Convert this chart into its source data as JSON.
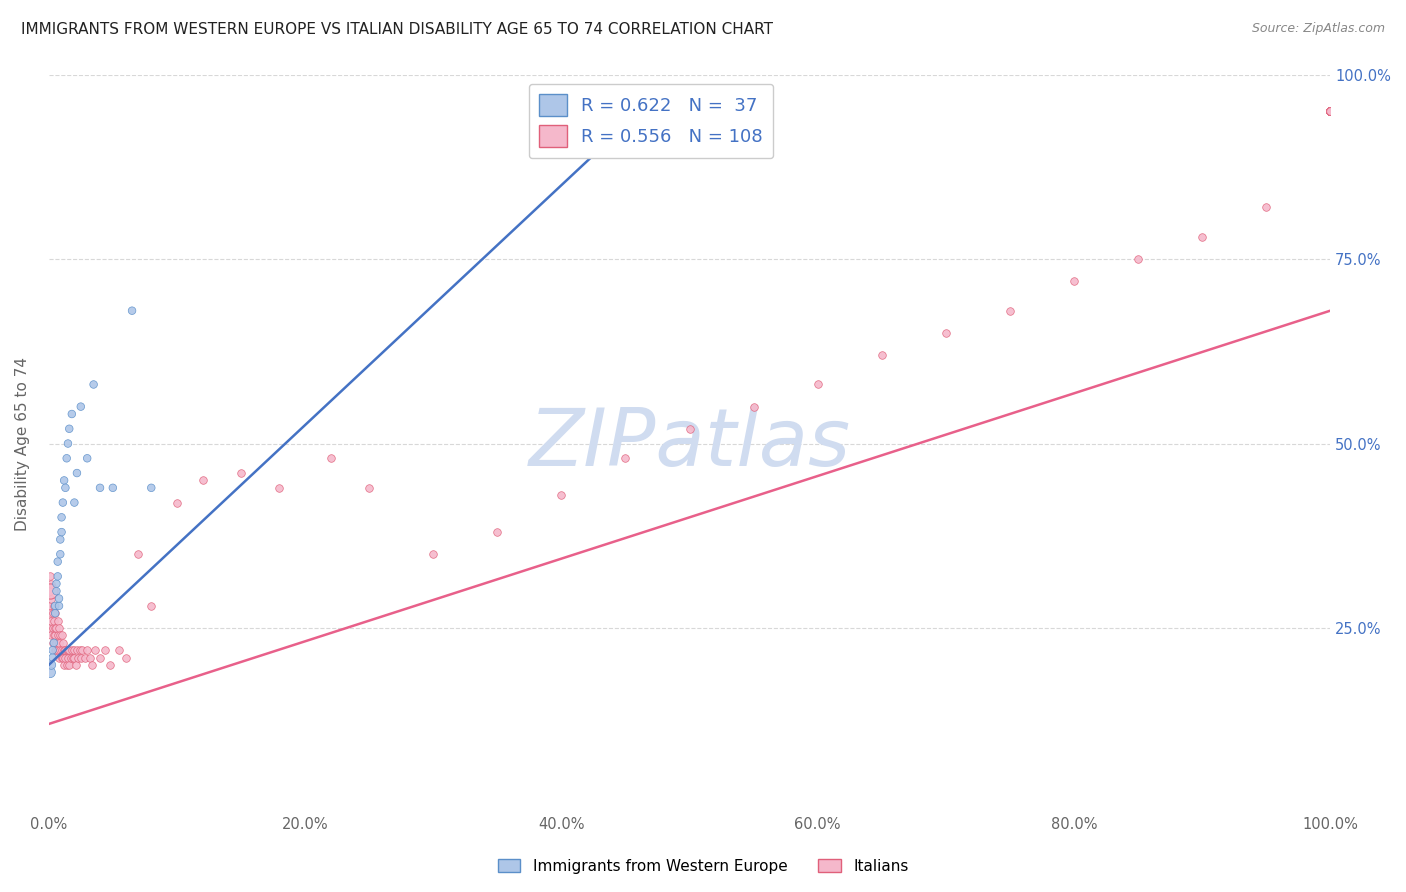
{
  "title": "IMMIGRANTS FROM WESTERN EUROPE VS ITALIAN DISABILITY AGE 65 TO 74 CORRELATION CHART",
  "source": "Source: ZipAtlas.com",
  "ylabel": "Disability Age 65 to 74",
  "blue_R": 0.622,
  "blue_N": 37,
  "pink_R": 0.556,
  "pink_N": 108,
  "blue_color": "#aec6e8",
  "pink_color": "#f5b8cb",
  "blue_edge_color": "#5b8fc9",
  "pink_edge_color": "#e0607a",
  "blue_line_color": "#4472c4",
  "pink_line_color": "#e8608a",
  "legend_text_color": "#4472c4",
  "title_color": "#222222",
  "source_color": "#888888",
  "grid_color": "#d8d8d8",
  "blue_scatter_x": [
    0.001,
    0.002,
    0.003,
    0.003,
    0.004,
    0.005,
    0.005,
    0.006,
    0.006,
    0.007,
    0.007,
    0.008,
    0.008,
    0.009,
    0.009,
    0.01,
    0.01,
    0.011,
    0.012,
    0.013,
    0.014,
    0.015,
    0.016,
    0.018,
    0.02,
    0.022,
    0.025,
    0.03,
    0.035,
    0.04,
    0.05,
    0.065,
    0.08,
    0.38,
    0.42,
    0.46,
    0.5
  ],
  "blue_scatter_y": [
    0.19,
    0.2,
    0.21,
    0.22,
    0.23,
    0.27,
    0.28,
    0.3,
    0.31,
    0.32,
    0.34,
    0.28,
    0.29,
    0.35,
    0.37,
    0.38,
    0.4,
    0.42,
    0.45,
    0.44,
    0.48,
    0.5,
    0.52,
    0.54,
    0.42,
    0.46,
    0.55,
    0.48,
    0.58,
    0.44,
    0.44,
    0.68,
    0.44,
    0.95,
    0.95,
    0.95,
    0.95
  ],
  "blue_sizes": [
    60,
    40,
    30,
    30,
    30,
    30,
    30,
    30,
    30,
    30,
    30,
    30,
    30,
    30,
    30,
    30,
    30,
    30,
    30,
    30,
    30,
    30,
    30,
    30,
    30,
    30,
    30,
    30,
    30,
    30,
    30,
    30,
    30,
    30,
    30,
    30,
    30
  ],
  "pink_scatter_x": [
    0.001,
    0.001,
    0.001,
    0.001,
    0.001,
    0.002,
    0.002,
    0.002,
    0.002,
    0.003,
    0.003,
    0.003,
    0.004,
    0.004,
    0.004,
    0.005,
    0.005,
    0.005,
    0.005,
    0.006,
    0.006,
    0.006,
    0.007,
    0.007,
    0.007,
    0.008,
    0.008,
    0.008,
    0.009,
    0.009,
    0.01,
    0.01,
    0.01,
    0.011,
    0.011,
    0.012,
    0.012,
    0.013,
    0.013,
    0.014,
    0.014,
    0.015,
    0.015,
    0.016,
    0.016,
    0.017,
    0.018,
    0.019,
    0.02,
    0.02,
    0.021,
    0.022,
    0.023,
    0.024,
    0.025,
    0.026,
    0.028,
    0.03,
    0.032,
    0.034,
    0.036,
    0.04,
    0.044,
    0.048,
    0.055,
    0.06,
    0.07,
    0.08,
    0.1,
    0.12,
    0.15,
    0.18,
    0.22,
    0.25,
    0.3,
    0.35,
    0.4,
    0.45,
    0.5,
    0.55,
    0.6,
    0.65,
    0.7,
    0.75,
    0.8,
    0.85,
    0.9,
    0.95,
    1.0,
    1.0,
    1.0,
    1.0,
    1.0,
    1.0,
    1.0,
    1.0,
    1.0,
    1.0,
    1.0,
    1.0,
    1.0,
    1.0,
    1.0,
    1.0,
    1.0,
    1.0,
    1.0,
    1.0
  ],
  "pink_scatter_y": [
    0.28,
    0.3,
    0.32,
    0.25,
    0.27,
    0.26,
    0.24,
    0.29,
    0.31,
    0.25,
    0.27,
    0.23,
    0.24,
    0.26,
    0.28,
    0.22,
    0.24,
    0.25,
    0.27,
    0.23,
    0.25,
    0.22,
    0.24,
    0.22,
    0.26,
    0.23,
    0.25,
    0.21,
    0.22,
    0.24,
    0.22,
    0.24,
    0.21,
    0.23,
    0.21,
    0.22,
    0.2,
    0.22,
    0.21,
    0.22,
    0.2,
    0.22,
    0.21,
    0.22,
    0.2,
    0.21,
    0.22,
    0.21,
    0.22,
    0.21,
    0.2,
    0.22,
    0.21,
    0.22,
    0.21,
    0.22,
    0.21,
    0.22,
    0.21,
    0.2,
    0.22,
    0.21,
    0.22,
    0.2,
    0.22,
    0.21,
    0.35,
    0.28,
    0.42,
    0.45,
    0.46,
    0.44,
    0.48,
    0.44,
    0.35,
    0.38,
    0.43,
    0.48,
    0.52,
    0.55,
    0.58,
    0.62,
    0.65,
    0.68,
    0.72,
    0.75,
    0.78,
    0.82,
    0.95,
    0.95,
    0.95,
    0.95,
    0.95,
    0.95,
    0.95,
    0.95,
    0.95,
    0.95,
    0.95,
    0.95,
    0.95,
    0.95,
    0.95,
    0.95,
    0.95,
    0.95,
    0.95,
    0.95
  ],
  "pink_sizes_large": [
    120
  ],
  "pink_sizes_large_x": [
    0.001
  ],
  "pink_sizes_large_y": [
    0.3
  ],
  "blue_trendline_x": [
    0.0,
    0.48
  ],
  "blue_trendline_y": [
    0.2,
    0.98
  ],
  "pink_trendline_x": [
    0.0,
    1.0
  ],
  "pink_trendline_y": [
    0.12,
    0.68
  ],
  "xlim": [
    0.0,
    1.0
  ],
  "ylim": [
    0.0,
    1.0
  ],
  "x_ticks": [
    0.0,
    0.2,
    0.4,
    0.6,
    0.8,
    1.0
  ],
  "y_ticks_right": [
    0.25,
    0.5,
    0.75,
    1.0
  ],
  "legend_labels": [
    "Immigrants from Western Europe",
    "Italians"
  ],
  "watermark": "ZIPatlas",
  "watermark_color": "#d0dcf0",
  "background_color": "#ffffff"
}
